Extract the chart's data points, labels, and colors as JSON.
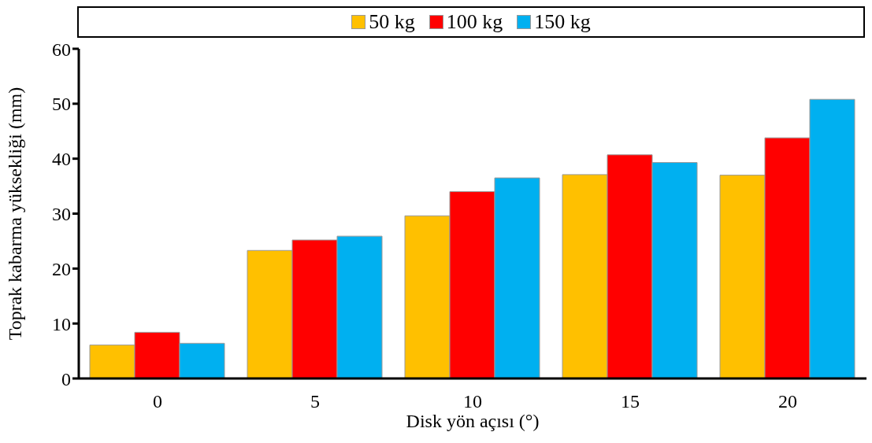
{
  "chart_data": {
    "type": "bar",
    "xlabel": "Disk yön açısı (°)",
    "ylabel": "Toprak kabarma yüksekliği (mm)",
    "categories": [
      "0",
      "5",
      "10",
      "15",
      "20"
    ],
    "series": [
      {
        "name": "50 kg",
        "color": "#ffc000",
        "values": [
          6.1,
          23.3,
          29.6,
          37.1,
          37.0
        ]
      },
      {
        "name": "100 kg",
        "color": "#ff0000",
        "values": [
          8.4,
          25.2,
          34.0,
          40.7,
          43.8
        ]
      },
      {
        "name": "150 kg",
        "color": "#00b0f0",
        "values": [
          6.4,
          25.9,
          36.5,
          39.3,
          50.8
        ]
      }
    ],
    "ylim": [
      0,
      60
    ],
    "yticks": [
      0,
      10,
      20,
      30,
      40,
      50,
      60
    ],
    "grid": false,
    "legend": "top"
  }
}
